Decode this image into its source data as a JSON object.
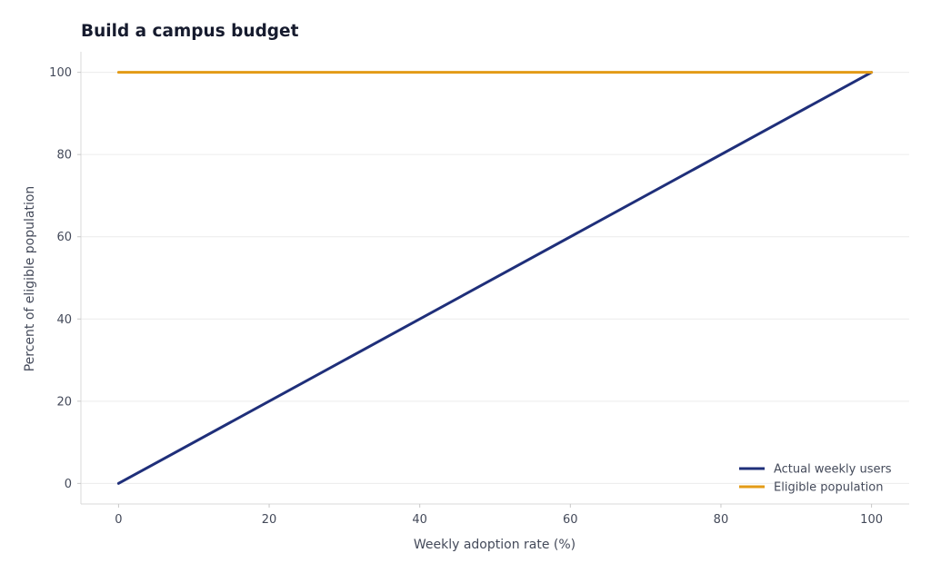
{
  "chart_data": {
    "type": "line",
    "title": "Build a campus budget",
    "xlabel": "Weekly adoption rate (%)",
    "ylabel": "Percent of eligible population",
    "xlim": [
      -5,
      105
    ],
    "ylim": [
      -5,
      105
    ],
    "xticks": [
      0,
      20,
      40,
      60,
      80,
      100
    ],
    "yticks": [
      0,
      20,
      40,
      60,
      80,
      100
    ],
    "grid": "y",
    "legend_position": "lower-right",
    "series": [
      {
        "name": "Actual weekly users",
        "color": "#1f2f7a",
        "x": [
          0,
          100
        ],
        "y": [
          0,
          100
        ]
      },
      {
        "name": "Eligible population",
        "color": "#e39b16",
        "x": [
          0,
          100
        ],
        "y": [
          100,
          100
        ]
      }
    ]
  }
}
